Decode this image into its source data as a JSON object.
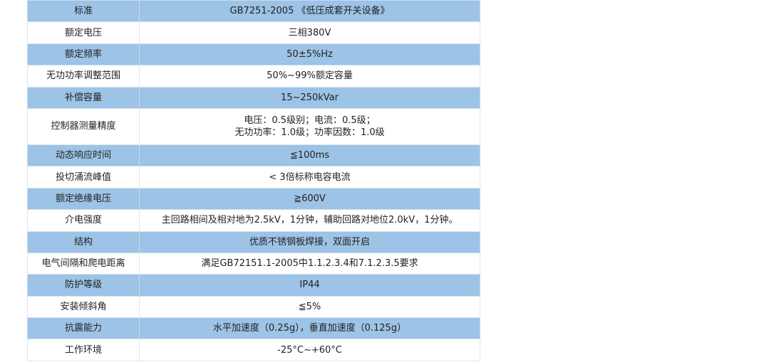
{
  "accent_color": "#9dc3e6",
  "rows": [
    {
      "label": "标准",
      "value": "GB7251-2005 《低压成套开关设备》"
    },
    {
      "label": "额定电压",
      "value": "三相380V"
    },
    {
      "label": "额定频率",
      "value": "50±5%Hz"
    },
    {
      "label": "无功功率调整范围",
      "value": "50%~99%额定容量"
    },
    {
      "label": "补偿容量",
      "value": "15~250kVar"
    },
    {
      "label": "控制器测量精度",
      "value": "电压：0.5级别；电流：0.5级；",
      "value2": "无功功率：1.0级；功率因数：1.0级"
    },
    {
      "label": "动态响应时间",
      "value": "≦100ms"
    },
    {
      "label": "投切涌流峰值",
      "value": "< 3倍标称电容电流"
    },
    {
      "label": "额定绝缘电压",
      "value": "≧600V"
    },
    {
      "label": "介电强度",
      "value": "主回路相间及相对地为2.5kV，1分钟，辅助回路对地位2.0kV，1分钟。"
    },
    {
      "label": "结构",
      "value": "优质不锈钢板焊接，双面开启"
    },
    {
      "label": "电气间隔和爬电距离",
      "value": "满足GB72151.1-2005中1.1.2.3.4和7.1.2.3.5要求"
    },
    {
      "label": "防护等级",
      "value": "IP44"
    },
    {
      "label": "安装倾斜角",
      "value": "≦5%"
    },
    {
      "label": "抗震能力",
      "value": "水平加速度（0.25g），垂直加速度（0.125g）"
    },
    {
      "label": "工作环境",
      "value": "-25°C~+60°C"
    }
  ]
}
